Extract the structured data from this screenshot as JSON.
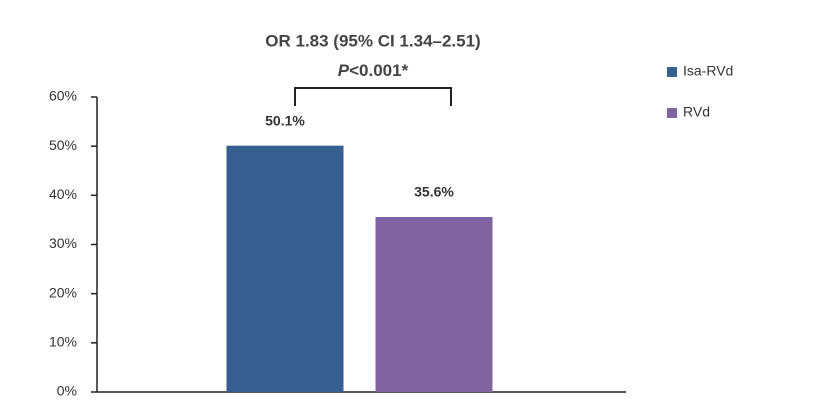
{
  "chart_data": {
    "type": "bar",
    "annotation_title": "OR 1.83 (95% CI 1.34–2.51)",
    "p_symbol": "P",
    "p_value": "<0.001*",
    "categories": [
      null
    ],
    "series": [
      {
        "name": "Isa-RVd",
        "color": "#375e91",
        "values": [
          50.1
        ],
        "value_labels": [
          "50.1%"
        ]
      },
      {
        "name": "RVd",
        "color": "#8064a2",
        "values": [
          35.6
        ],
        "value_labels": [
          "35.6%"
        ]
      }
    ],
    "ylim": [
      0,
      60
    ],
    "yticks": [
      {
        "value": 0,
        "label": "0%"
      },
      {
        "value": 10,
        "label": "10%"
      },
      {
        "value": 20,
        "label": "20%"
      },
      {
        "value": 30,
        "label": "30%"
      },
      {
        "value": 40,
        "label": "40%"
      },
      {
        "value": 50,
        "label": "50%"
      },
      {
        "value": 60,
        "label": "60%"
      }
    ],
    "grid": false,
    "legend": "right"
  }
}
